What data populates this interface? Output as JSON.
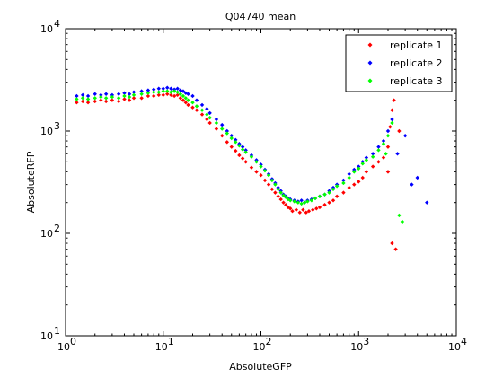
{
  "chart_data": {
    "type": "scatter",
    "title": "Q04740 mean",
    "xlabel": "AbsoluteGFP",
    "ylabel": "AbsoluteRFP",
    "xscale": "log",
    "yscale": "log",
    "xlim": [
      1,
      10000
    ],
    "ylim": [
      10,
      10000
    ],
    "x_ticks": [
      {
        "value": 1,
        "base": "10",
        "exp": "0"
      },
      {
        "value": 10,
        "base": "10",
        "exp": "1"
      },
      {
        "value": 100,
        "base": "10",
        "exp": "2"
      },
      {
        "value": 1000,
        "base": "10",
        "exp": "3"
      },
      {
        "value": 10000,
        "base": "10",
        "exp": "4"
      }
    ],
    "y_ticks": [
      {
        "value": 10,
        "base": "10",
        "exp": "1"
      },
      {
        "value": 100,
        "base": "10",
        "exp": "2"
      },
      {
        "value": 1000,
        "base": "10",
        "exp": "3"
      },
      {
        "value": 10000,
        "base": "10",
        "exp": "4"
      }
    ],
    "grid": false,
    "legend_position": "top-right",
    "series": [
      {
        "name": "replicate 1",
        "color": "#ff0000",
        "points": [
          [
            1.3,
            1900
          ],
          [
            1.5,
            1950
          ],
          [
            1.7,
            1900
          ],
          [
            2,
            1950
          ],
          [
            2.3,
            2000
          ],
          [
            2.6,
            1950
          ],
          [
            3,
            2000
          ],
          [
            3.5,
            1950
          ],
          [
            4,
            2050
          ],
          [
            4.5,
            2000
          ],
          [
            5,
            2100
          ],
          [
            6,
            2100
          ],
          [
            7,
            2200
          ],
          [
            8,
            2200
          ],
          [
            9,
            2250
          ],
          [
            10,
            2250
          ],
          [
            11,
            2300
          ],
          [
            12,
            2250
          ],
          [
            13,
            2200
          ],
          [
            14,
            2250
          ],
          [
            15,
            2100
          ],
          [
            16,
            2000
          ],
          [
            17,
            1900
          ],
          [
            18,
            1800
          ],
          [
            20,
            1700
          ],
          [
            22,
            1600
          ],
          [
            25,
            1450
          ],
          [
            28,
            1300
          ],
          [
            30,
            1200
          ],
          [
            35,
            1050
          ],
          [
            40,
            900
          ],
          [
            45,
            780
          ],
          [
            50,
            700
          ],
          [
            55,
            640
          ],
          [
            60,
            580
          ],
          [
            65,
            540
          ],
          [
            70,
            500
          ],
          [
            80,
            440
          ],
          [
            90,
            400
          ],
          [
            100,
            370
          ],
          [
            110,
            330
          ],
          [
            120,
            300
          ],
          [
            130,
            270
          ],
          [
            140,
            250
          ],
          [
            150,
            230
          ],
          [
            160,
            215
          ],
          [
            170,
            200
          ],
          [
            180,
            190
          ],
          [
            190,
            180
          ],
          [
            200,
            175
          ],
          [
            210,
            165
          ],
          [
            230,
            170
          ],
          [
            250,
            160
          ],
          [
            270,
            170
          ],
          [
            290,
            160
          ],
          [
            310,
            165
          ],
          [
            340,
            170
          ],
          [
            370,
            175
          ],
          [
            400,
            180
          ],
          [
            450,
            190
          ],
          [
            500,
            200
          ],
          [
            550,
            210
          ],
          [
            600,
            230
          ],
          [
            700,
            250
          ],
          [
            800,
            280
          ],
          [
            900,
            300
          ],
          [
            1000,
            320
          ],
          [
            1100,
            350
          ],
          [
            1200,
            400
          ],
          [
            1400,
            450
          ],
          [
            1600,
            500
          ],
          [
            1800,
            550
          ],
          [
            2000,
            700
          ],
          [
            2100,
            1100
          ],
          [
            2200,
            1600
          ],
          [
            2300,
            2000
          ],
          [
            2000,
            400
          ],
          [
            2200,
            80
          ],
          [
            2400,
            70
          ],
          [
            2600,
            1000
          ]
        ]
      },
      {
        "name": "replicate 2",
        "color": "#0000ff",
        "points": [
          [
            1.3,
            2200
          ],
          [
            1.5,
            2250
          ],
          [
            1.7,
            2200
          ],
          [
            2,
            2300
          ],
          [
            2.3,
            2250
          ],
          [
            2.6,
            2300
          ],
          [
            3,
            2250
          ],
          [
            3.5,
            2300
          ],
          [
            4,
            2350
          ],
          [
            4.5,
            2300
          ],
          [
            5,
            2400
          ],
          [
            6,
            2450
          ],
          [
            7,
            2500
          ],
          [
            8,
            2550
          ],
          [
            9,
            2600
          ],
          [
            10,
            2600
          ],
          [
            11,
            2650
          ],
          [
            12,
            2600
          ],
          [
            13,
            2550
          ],
          [
            14,
            2600
          ],
          [
            15,
            2500
          ],
          [
            16,
            2450
          ],
          [
            17,
            2350
          ],
          [
            18,
            2300
          ],
          [
            20,
            2200
          ],
          [
            22,
            2000
          ],
          [
            25,
            1800
          ],
          [
            28,
            1650
          ],
          [
            30,
            1500
          ],
          [
            35,
            1300
          ],
          [
            40,
            1150
          ],
          [
            45,
            1000
          ],
          [
            50,
            900
          ],
          [
            55,
            820
          ],
          [
            60,
            750
          ],
          [
            65,
            700
          ],
          [
            70,
            650
          ],
          [
            80,
            580
          ],
          [
            90,
            520
          ],
          [
            100,
            470
          ],
          [
            110,
            420
          ],
          [
            120,
            380
          ],
          [
            130,
            340
          ],
          [
            140,
            310
          ],
          [
            150,
            280
          ],
          [
            160,
            260
          ],
          [
            170,
            240
          ],
          [
            180,
            230
          ],
          [
            190,
            220
          ],
          [
            200,
            215
          ],
          [
            220,
            210
          ],
          [
            240,
            205
          ],
          [
            260,
            210
          ],
          [
            280,
            200
          ],
          [
            300,
            210
          ],
          [
            330,
            215
          ],
          [
            360,
            220
          ],
          [
            400,
            230
          ],
          [
            450,
            240
          ],
          [
            500,
            260
          ],
          [
            550,
            280
          ],
          [
            600,
            300
          ],
          [
            700,
            330
          ],
          [
            800,
            380
          ],
          [
            900,
            420
          ],
          [
            1000,
            450
          ],
          [
            1100,
            500
          ],
          [
            1200,
            550
          ],
          [
            1400,
            600
          ],
          [
            1600,
            700
          ],
          [
            1800,
            800
          ],
          [
            2000,
            1000
          ],
          [
            2200,
            1300
          ],
          [
            2500,
            600
          ],
          [
            3000,
            900
          ],
          [
            3500,
            300
          ],
          [
            4000,
            350
          ],
          [
            5000,
            200
          ]
        ]
      },
      {
        "name": "replicate 3",
        "color": "#00ff00",
        "points": [
          [
            1.3,
            2050
          ],
          [
            1.5,
            2100
          ],
          [
            1.7,
            2050
          ],
          [
            2,
            2100
          ],
          [
            2.3,
            2150
          ],
          [
            2.6,
            2100
          ],
          [
            3,
            2150
          ],
          [
            3.5,
            2100
          ],
          [
            4,
            2200
          ],
          [
            4.5,
            2150
          ],
          [
            5,
            2250
          ],
          [
            6,
            2300
          ],
          [
            7,
            2350
          ],
          [
            8,
            2400
          ],
          [
            9,
            2400
          ],
          [
            10,
            2450
          ],
          [
            11,
            2450
          ],
          [
            12,
            2400
          ],
          [
            13,
            2450
          ],
          [
            14,
            2400
          ],
          [
            15,
            2300
          ],
          [
            16,
            2200
          ],
          [
            17,
            2100
          ],
          [
            18,
            2000
          ],
          [
            20,
            1900
          ],
          [
            22,
            1750
          ],
          [
            25,
            1600
          ],
          [
            28,
            1450
          ],
          [
            30,
            1350
          ],
          [
            35,
            1200
          ],
          [
            40,
            1050
          ],
          [
            45,
            950
          ],
          [
            50,
            850
          ],
          [
            55,
            780
          ],
          [
            60,
            720
          ],
          [
            65,
            660
          ],
          [
            70,
            620
          ],
          [
            80,
            560
          ],
          [
            90,
            500
          ],
          [
            100,
            450
          ],
          [
            110,
            410
          ],
          [
            120,
            370
          ],
          [
            130,
            330
          ],
          [
            140,
            300
          ],
          [
            150,
            270
          ],
          [
            160,
            250
          ],
          [
            170,
            235
          ],
          [
            180,
            225
          ],
          [
            190,
            215
          ],
          [
            200,
            210
          ],
          [
            220,
            205
          ],
          [
            240,
            200
          ],
          [
            260,
            195
          ],
          [
            280,
            200
          ],
          [
            300,
            205
          ],
          [
            330,
            210
          ],
          [
            360,
            220
          ],
          [
            400,
            230
          ],
          [
            450,
            240
          ],
          [
            500,
            250
          ],
          [
            550,
            270
          ],
          [
            600,
            290
          ],
          [
            700,
            310
          ],
          [
            800,
            350
          ],
          [
            900,
            400
          ],
          [
            1000,
            430
          ],
          [
            1100,
            480
          ],
          [
            1200,
            520
          ],
          [
            1400,
            560
          ],
          [
            1600,
            650
          ],
          [
            1800,
            750
          ],
          [
            2000,
            900
          ],
          [
            2200,
            1200
          ],
          [
            2600,
            150
          ],
          [
            2800,
            130
          ],
          [
            1900,
            600
          ]
        ]
      }
    ]
  }
}
